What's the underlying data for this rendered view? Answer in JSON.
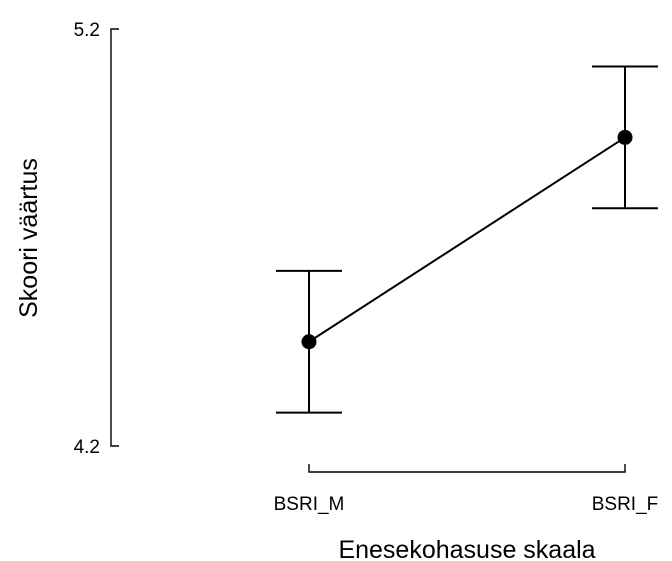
{
  "chart_data": {
    "type": "line",
    "categories": [
      "BSRI_M",
      "BSRI_F"
    ],
    "series": [
      {
        "values": [
          4.45,
          4.94
        ],
        "error_upper": [
          4.62,
          5.11
        ],
        "error_lower": [
          4.28,
          4.77
        ]
      }
    ],
    "xlabel": "Enesekohasuse skaala",
    "ylabel": "Skoori väärtus",
    "ylim": [
      4.2,
      5.2
    ],
    "yticks": [
      "4.2",
      "5.2"
    ],
    "grid": false,
    "legend": "none",
    "colors": {
      "line": "#000000",
      "marker": "#000000"
    }
  }
}
